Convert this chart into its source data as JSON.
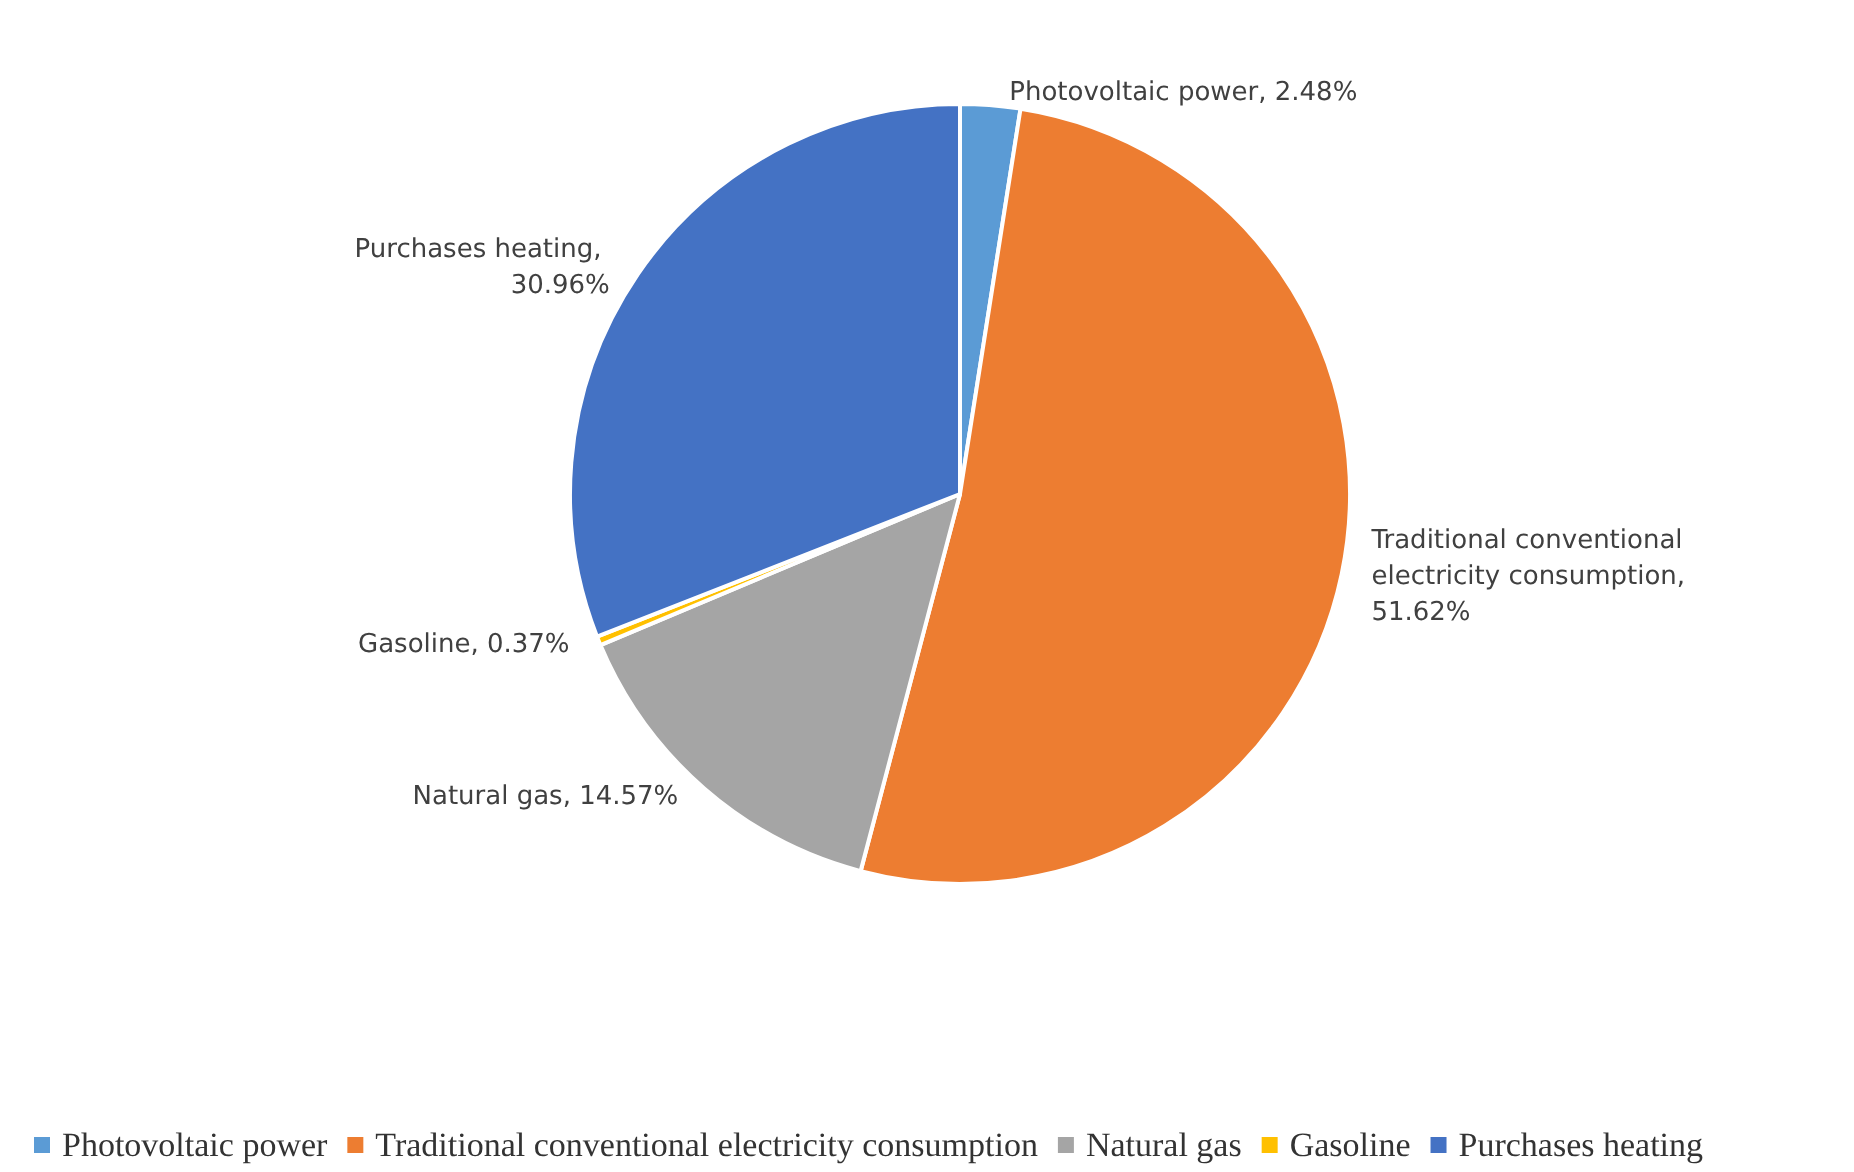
{
  "chart_data": {
    "type": "pie",
    "categories": [
      "Photovoltaic power",
      "Traditional conventional electricity consumption",
      "Natural gas",
      "Gasoline",
      "Purchases heating"
    ],
    "values": [
      2.48,
      51.62,
      14.57,
      0.37,
      30.96
    ],
    "value_labels": [
      "Photovoltaic power, 2.48%",
      "Traditional conventional electricity consumption, 51.62%",
      "Natural gas, 14.57%",
      "Gasoline, 0.37%",
      "Purchases heating, 30.96%"
    ],
    "colors": [
      "#5b9bd5",
      "#ed7d31",
      "#a5a5a5",
      "#ffc000",
      "#4472c4"
    ],
    "legend": "bottom"
  }
}
